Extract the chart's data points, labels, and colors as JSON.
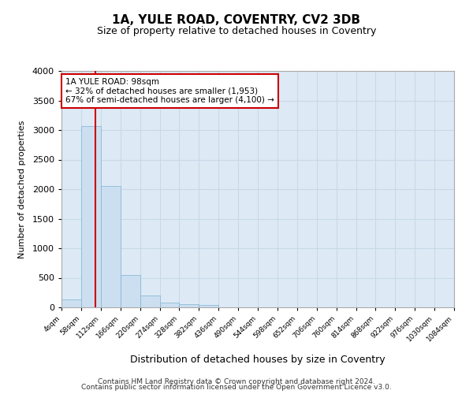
{
  "title": "1A, YULE ROAD, COVENTRY, CV2 3DB",
  "subtitle": "Size of property relative to detached houses in Coventry",
  "xlabel": "Distribution of detached houses by size in Coventry",
  "ylabel": "Number of detached properties",
  "footer_line1": "Contains HM Land Registry data © Crown copyright and database right 2024.",
  "footer_line2": "Contains public sector information licensed under the Open Government Licence v3.0.",
  "bar_color": "#ccdff0",
  "bar_edge_color": "#7fb3d3",
  "grid_color": "#c8d8e8",
  "background_color": "#ddeaf5",
  "bins": [
    4,
    58,
    112,
    166,
    220,
    274,
    328,
    382,
    436,
    490,
    544,
    598,
    652,
    706,
    760,
    814,
    868,
    922,
    976,
    1030,
    1084
  ],
  "bin_labels": [
    "4sqm",
    "58sqm",
    "112sqm",
    "166sqm",
    "220sqm",
    "274sqm",
    "328sqm",
    "382sqm",
    "436sqm",
    "490sqm",
    "544sqm",
    "598sqm",
    "652sqm",
    "706sqm",
    "760sqm",
    "814sqm",
    "868sqm",
    "922sqm",
    "976sqm",
    "1030sqm",
    "1084sqm"
  ],
  "values": [
    130,
    3070,
    2060,
    550,
    200,
    75,
    55,
    40,
    0,
    0,
    0,
    0,
    0,
    0,
    0,
    0,
    0,
    0,
    0,
    0
  ],
  "property_size": 98,
  "property_line_color": "#cc0000",
  "annotation_line1": "1A YULE ROAD: 98sqm",
  "annotation_line2": "← 32% of detached houses are smaller (1,953)",
  "annotation_line3": "67% of semi-detached houses are larger (4,100) →",
  "annotation_box_color": "#ffffff",
  "annotation_border_color": "#cc0000",
  "ylim": [
    0,
    4000
  ],
  "yticks": [
    0,
    500,
    1000,
    1500,
    2000,
    2500,
    3000,
    3500,
    4000
  ]
}
